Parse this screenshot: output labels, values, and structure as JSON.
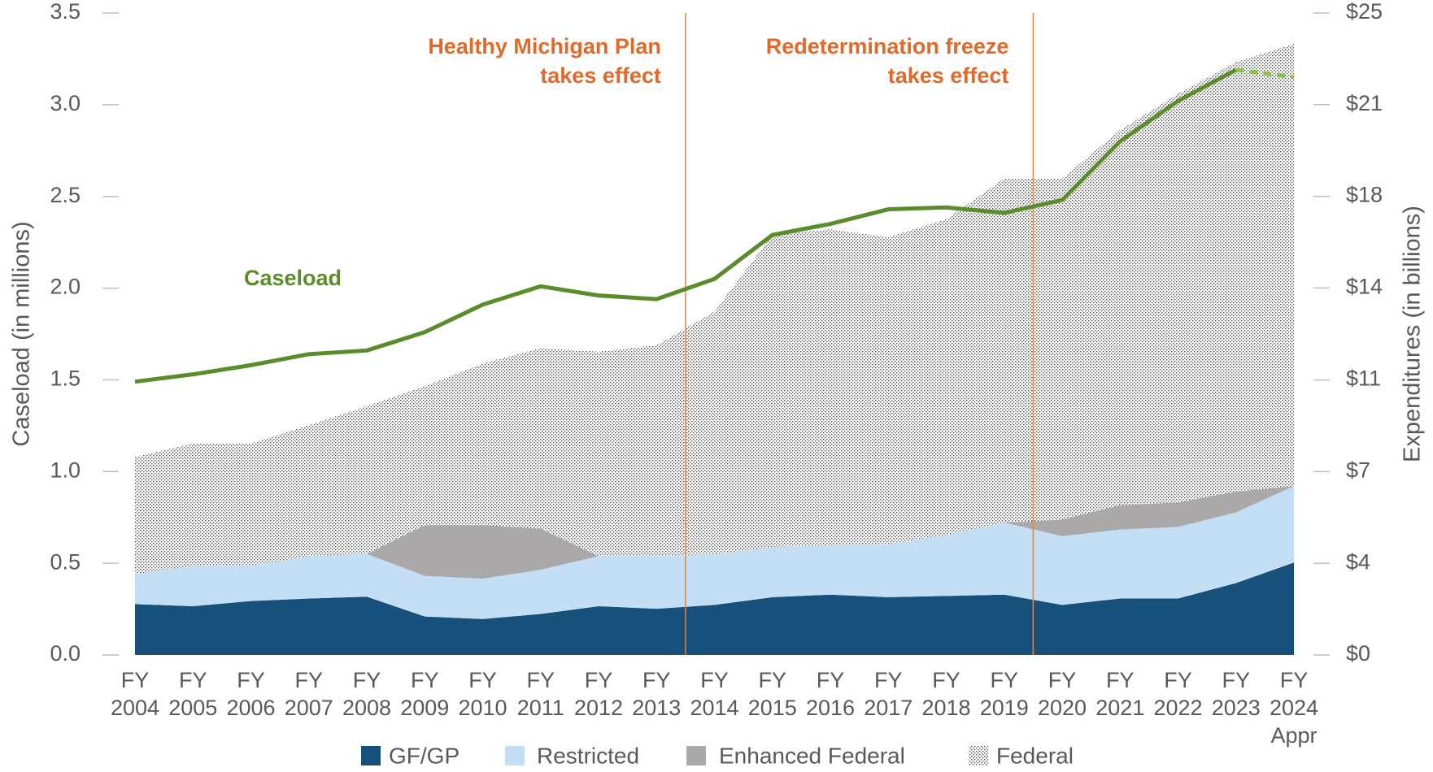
{
  "chart_data": {
    "type": "area",
    "y_label": "Caseload (in millions)",
    "y2_label": "Expenditures (in billions)",
    "categories": [
      "FY 2004",
      "FY 2005",
      "FY 2006",
      "FY 2007",
      "FY 2008",
      "FY 2009",
      "FY 2010",
      "FY 2011",
      "FY 2012",
      "FY 2013",
      "FY 2014",
      "FY 2015",
      "FY 2016",
      "FY 2017",
      "FY 2018",
      "FY 2019",
      "FY 2020",
      "FY 2021",
      "FY 2022",
      "FY 2023",
      "FY 2024 Appr"
    ],
    "ylim": [
      0,
      3.5
    ],
    "yticks": [
      {
        "value": 0,
        "label": "0.0"
      },
      0.5,
      {
        "value": 1,
        "label": "1.0"
      },
      1.5,
      {
        "value": 2,
        "label": "2.0"
      },
      2.5,
      {
        "value": 3,
        "label": "3.0"
      },
      3.5
    ],
    "y2lim": [
      0,
      25
    ],
    "y2ticks": [
      {
        "value": 0,
        "label": "$0"
      },
      {
        "value": 3.57,
        "label": "$4"
      },
      {
        "value": 7.14,
        "label": "$7"
      },
      {
        "value": 10.71,
        "label": "$11"
      },
      {
        "value": 14.29,
        "label": "$14"
      },
      {
        "value": 17.86,
        "label": "$18"
      },
      {
        "value": 21.43,
        "label": "$21"
      },
      {
        "value": 25,
        "label": "$25"
      }
    ],
    "stacked": true,
    "series": [
      {
        "name": "GF/GP",
        "color": "#17507a",
        "axis": "y2",
        "values": [
          1.98,
          1.9,
          2.1,
          2.2,
          2.27,
          1.5,
          1.4,
          1.6,
          1.9,
          1.8,
          1.95,
          2.25,
          2.35,
          2.25,
          2.3,
          2.35,
          1.95,
          2.2,
          2.2,
          2.8,
          3.6
        ]
      },
      {
        "name": "Restricted",
        "color": "#c4dff5",
        "axis": "y2",
        "values": [
          1.17,
          1.57,
          1.37,
          1.65,
          1.66,
          1.58,
          1.57,
          1.72,
          1.95,
          2.05,
          1.98,
          1.96,
          1.93,
          2.06,
          2.37,
          2.81,
          2.68,
          2.68,
          2.79,
          2.75,
          2.98
        ]
      },
      {
        "name": "Enhanced Federal",
        "color": "#aaa8a8",
        "axis": "y2",
        "values": [
          0,
          0,
          0,
          0,
          0,
          1.98,
          2.09,
          1.6,
          0,
          0,
          0,
          0,
          0,
          0,
          0,
          0,
          0.64,
          0.95,
          0.95,
          0.81,
          0
        ]
      },
      {
        "name": "Federal",
        "color": "#555555",
        "pattern": "dots",
        "axis": "y2",
        "values": [
          4.56,
          4.77,
          4.77,
          5.1,
          5.76,
          5.41,
          6.29,
          7.03,
          7.96,
          8.21,
          9.44,
          12.16,
          12.3,
          11.96,
          12.3,
          13.4,
          13.29,
          14.61,
          15.91,
          16.73,
          17.22
        ]
      }
    ],
    "line": {
      "name": "Caseload",
      "type": "line",
      "axis": "y",
      "color": "#5a8c2b",
      "projected_color": "#8dc04a",
      "projected_from": 19,
      "values": [
        1.49,
        1.53,
        1.58,
        1.64,
        1.66,
        1.76,
        1.91,
        2.01,
        1.96,
        1.94,
        2.05,
        2.29,
        2.35,
        2.43,
        2.44,
        2.41,
        2.48,
        2.8,
        3.02,
        3.19,
        3.15
      ]
    },
    "annotations": [
      {
        "lines": [
          "Healthy Michigan Plan",
          "takes effect"
        ],
        "color": "#e06a2a"
      },
      {
        "lines": [
          "Redetermination freeze",
          "takes effect"
        ],
        "color": "#e06a2a"
      }
    ],
    "legend": "bottom"
  }
}
